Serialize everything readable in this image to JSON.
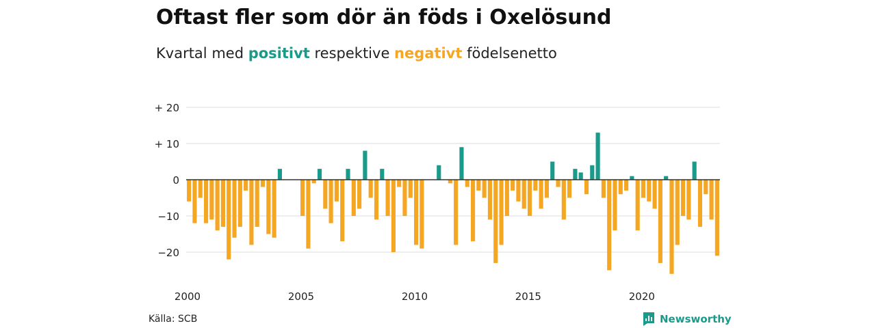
{
  "title": "Oftast fler som dör än föds i Oxelösund",
  "subtitle": {
    "prefix": "Kvartal med ",
    "positive": "positivt",
    "middle": " respektive ",
    "negative": "negativt",
    "suffix": " födelsenetto"
  },
  "source": "Källa: SCB",
  "brand": "Newsworthy",
  "colors": {
    "positive": "#1a9a8a",
    "negative": "#f5a623",
    "grid": "#dddddd",
    "axis": "#333333"
  },
  "chart_data": {
    "type": "bar",
    "title": "Oftast fler som dör än föds i Oxelösund",
    "subtitle": "Kvartal med positivt respektive negativt födelsenetto",
    "ylim": [
      -28,
      22
    ],
    "y_ticks": [
      20,
      10,
      0,
      -10,
      -20
    ],
    "y_tick_labels": [
      "+ 20",
      "+ 10",
      "0",
      "−10",
      "−20"
    ],
    "x_tick_labels": [
      "2000",
      "2005",
      "2010",
      "2015",
      "2020"
    ],
    "x_tick_years": [
      2000,
      2005,
      2010,
      2015,
      2020
    ],
    "start_year": 2000,
    "grid": true,
    "values": [
      -6,
      -12,
      -5,
      -12,
      -11,
      -14,
      -13,
      -22,
      -16,
      -13,
      -3,
      -18,
      -13,
      -2,
      -15,
      -16,
      3,
      0,
      0,
      0,
      -10,
      -19,
      -1,
      3,
      -8,
      -12,
      -6,
      -17,
      3,
      -10,
      -8,
      8,
      -5,
      -11,
      3,
      -10,
      -20,
      -2,
      -10,
      -5,
      -18,
      -19,
      0,
      0,
      4,
      0,
      -1,
      -18,
      9,
      -2,
      -17,
      -3,
      -5,
      -11,
      -23,
      -18,
      -10,
      -3,
      -6,
      -8,
      -10,
      -3,
      -8,
      -5,
      5,
      -2,
      -11,
      -5,
      3,
      2,
      -4,
      4,
      13,
      -5,
      -25,
      -14,
      -4,
      -3,
      1,
      -14,
      -5,
      -6,
      -8,
      -23,
      1,
      -26,
      -18,
      -10,
      -11,
      5,
      -13,
      -4,
      -11,
      -21
    ]
  }
}
